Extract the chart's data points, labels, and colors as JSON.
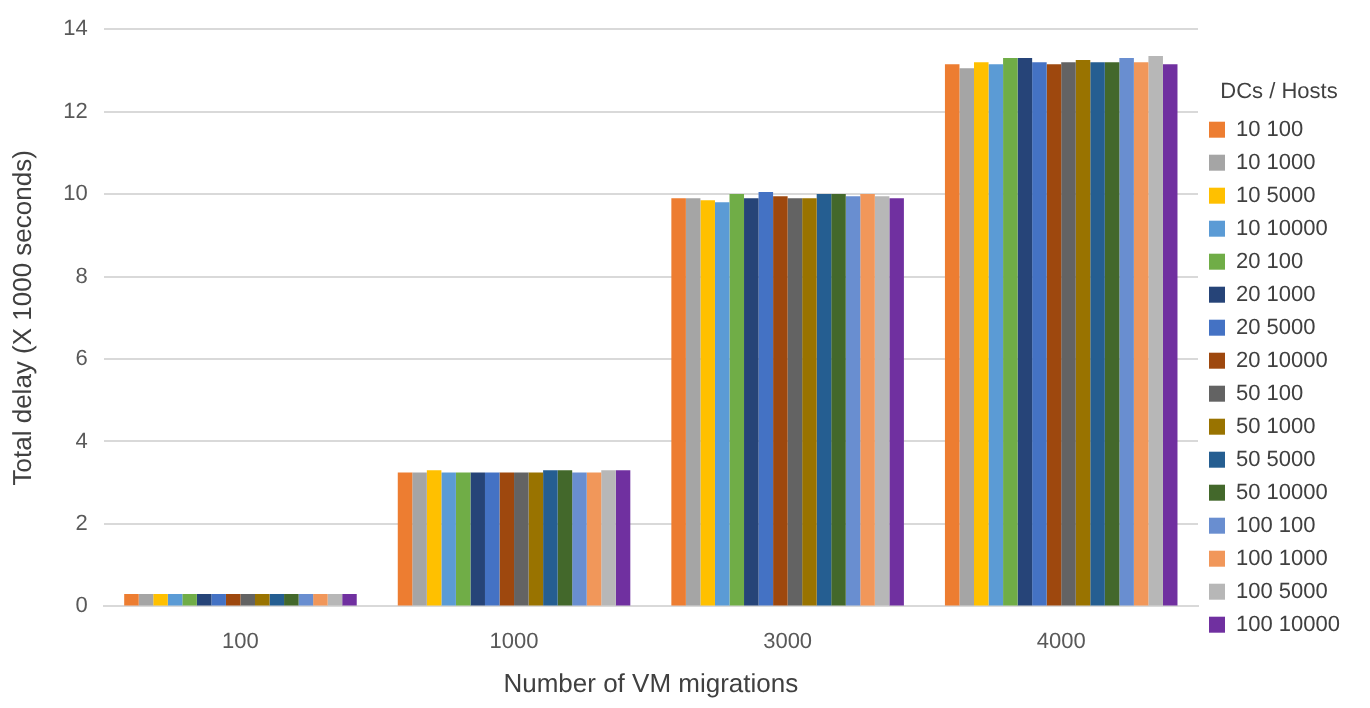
{
  "chart_data": {
    "type": "bar",
    "xlabel": "Number of VM migrations",
    "ylabel": "Total delay (X 1000 seconds)",
    "legend_title": "DCs / Hosts",
    "legend": "right",
    "grid": "y",
    "categories": [
      "100",
      "1000",
      "3000",
      "4000"
    ],
    "ylim": [
      0,
      14
    ],
    "yticks": [
      0,
      2,
      4,
      6,
      8,
      10,
      12,
      14
    ],
    "series": [
      {
        "name": "10 100",
        "color": "#ed7d31",
        "values": [
          0.3,
          3.25,
          9.9,
          13.15
        ]
      },
      {
        "name": "10 1000",
        "color": "#a5a5a5",
        "values": [
          0.3,
          3.25,
          9.9,
          13.05
        ]
      },
      {
        "name": "10 5000",
        "color": "#ffc000",
        "values": [
          0.3,
          3.3,
          9.85,
          13.2
        ]
      },
      {
        "name": "10 10000",
        "color": "#5b9bd5",
        "values": [
          0.3,
          3.25,
          9.8,
          13.15
        ]
      },
      {
        "name": "20 100",
        "color": "#70ad47",
        "values": [
          0.3,
          3.25,
          10.0,
          13.3
        ]
      },
      {
        "name": "20 1000",
        "color": "#264478",
        "values": [
          0.3,
          3.25,
          9.9,
          13.3
        ]
      },
      {
        "name": "20 5000",
        "color": "#4472c4",
        "values": [
          0.3,
          3.25,
          10.05,
          13.2
        ]
      },
      {
        "name": "20 10000",
        "color": "#9e480e",
        "values": [
          0.3,
          3.25,
          9.95,
          13.15
        ]
      },
      {
        "name": "50 100",
        "color": "#636363",
        "values": [
          0.3,
          3.25,
          9.9,
          13.2
        ]
      },
      {
        "name": "50 1000",
        "color": "#997300",
        "values": [
          0.3,
          3.25,
          9.9,
          13.25
        ]
      },
      {
        "name": "50 5000",
        "color": "#255e91",
        "values": [
          0.3,
          3.3,
          10.0,
          13.2
        ]
      },
      {
        "name": "50 10000",
        "color": "#43682b",
        "values": [
          0.3,
          3.3,
          10.0,
          13.2
        ]
      },
      {
        "name": "100 100",
        "color": "#698ed0",
        "values": [
          0.3,
          3.25,
          9.95,
          13.3
        ]
      },
      {
        "name": "100 1000",
        "color": "#f1975a",
        "values": [
          0.3,
          3.25,
          10.0,
          13.2
        ]
      },
      {
        "name": "100 5000",
        "color": "#b7b7b7",
        "values": [
          0.3,
          3.3,
          9.95,
          13.35
        ]
      },
      {
        "name": "100 10000",
        "color": "#7030a0",
        "values": [
          0.3,
          3.3,
          9.9,
          13.15
        ]
      }
    ]
  }
}
